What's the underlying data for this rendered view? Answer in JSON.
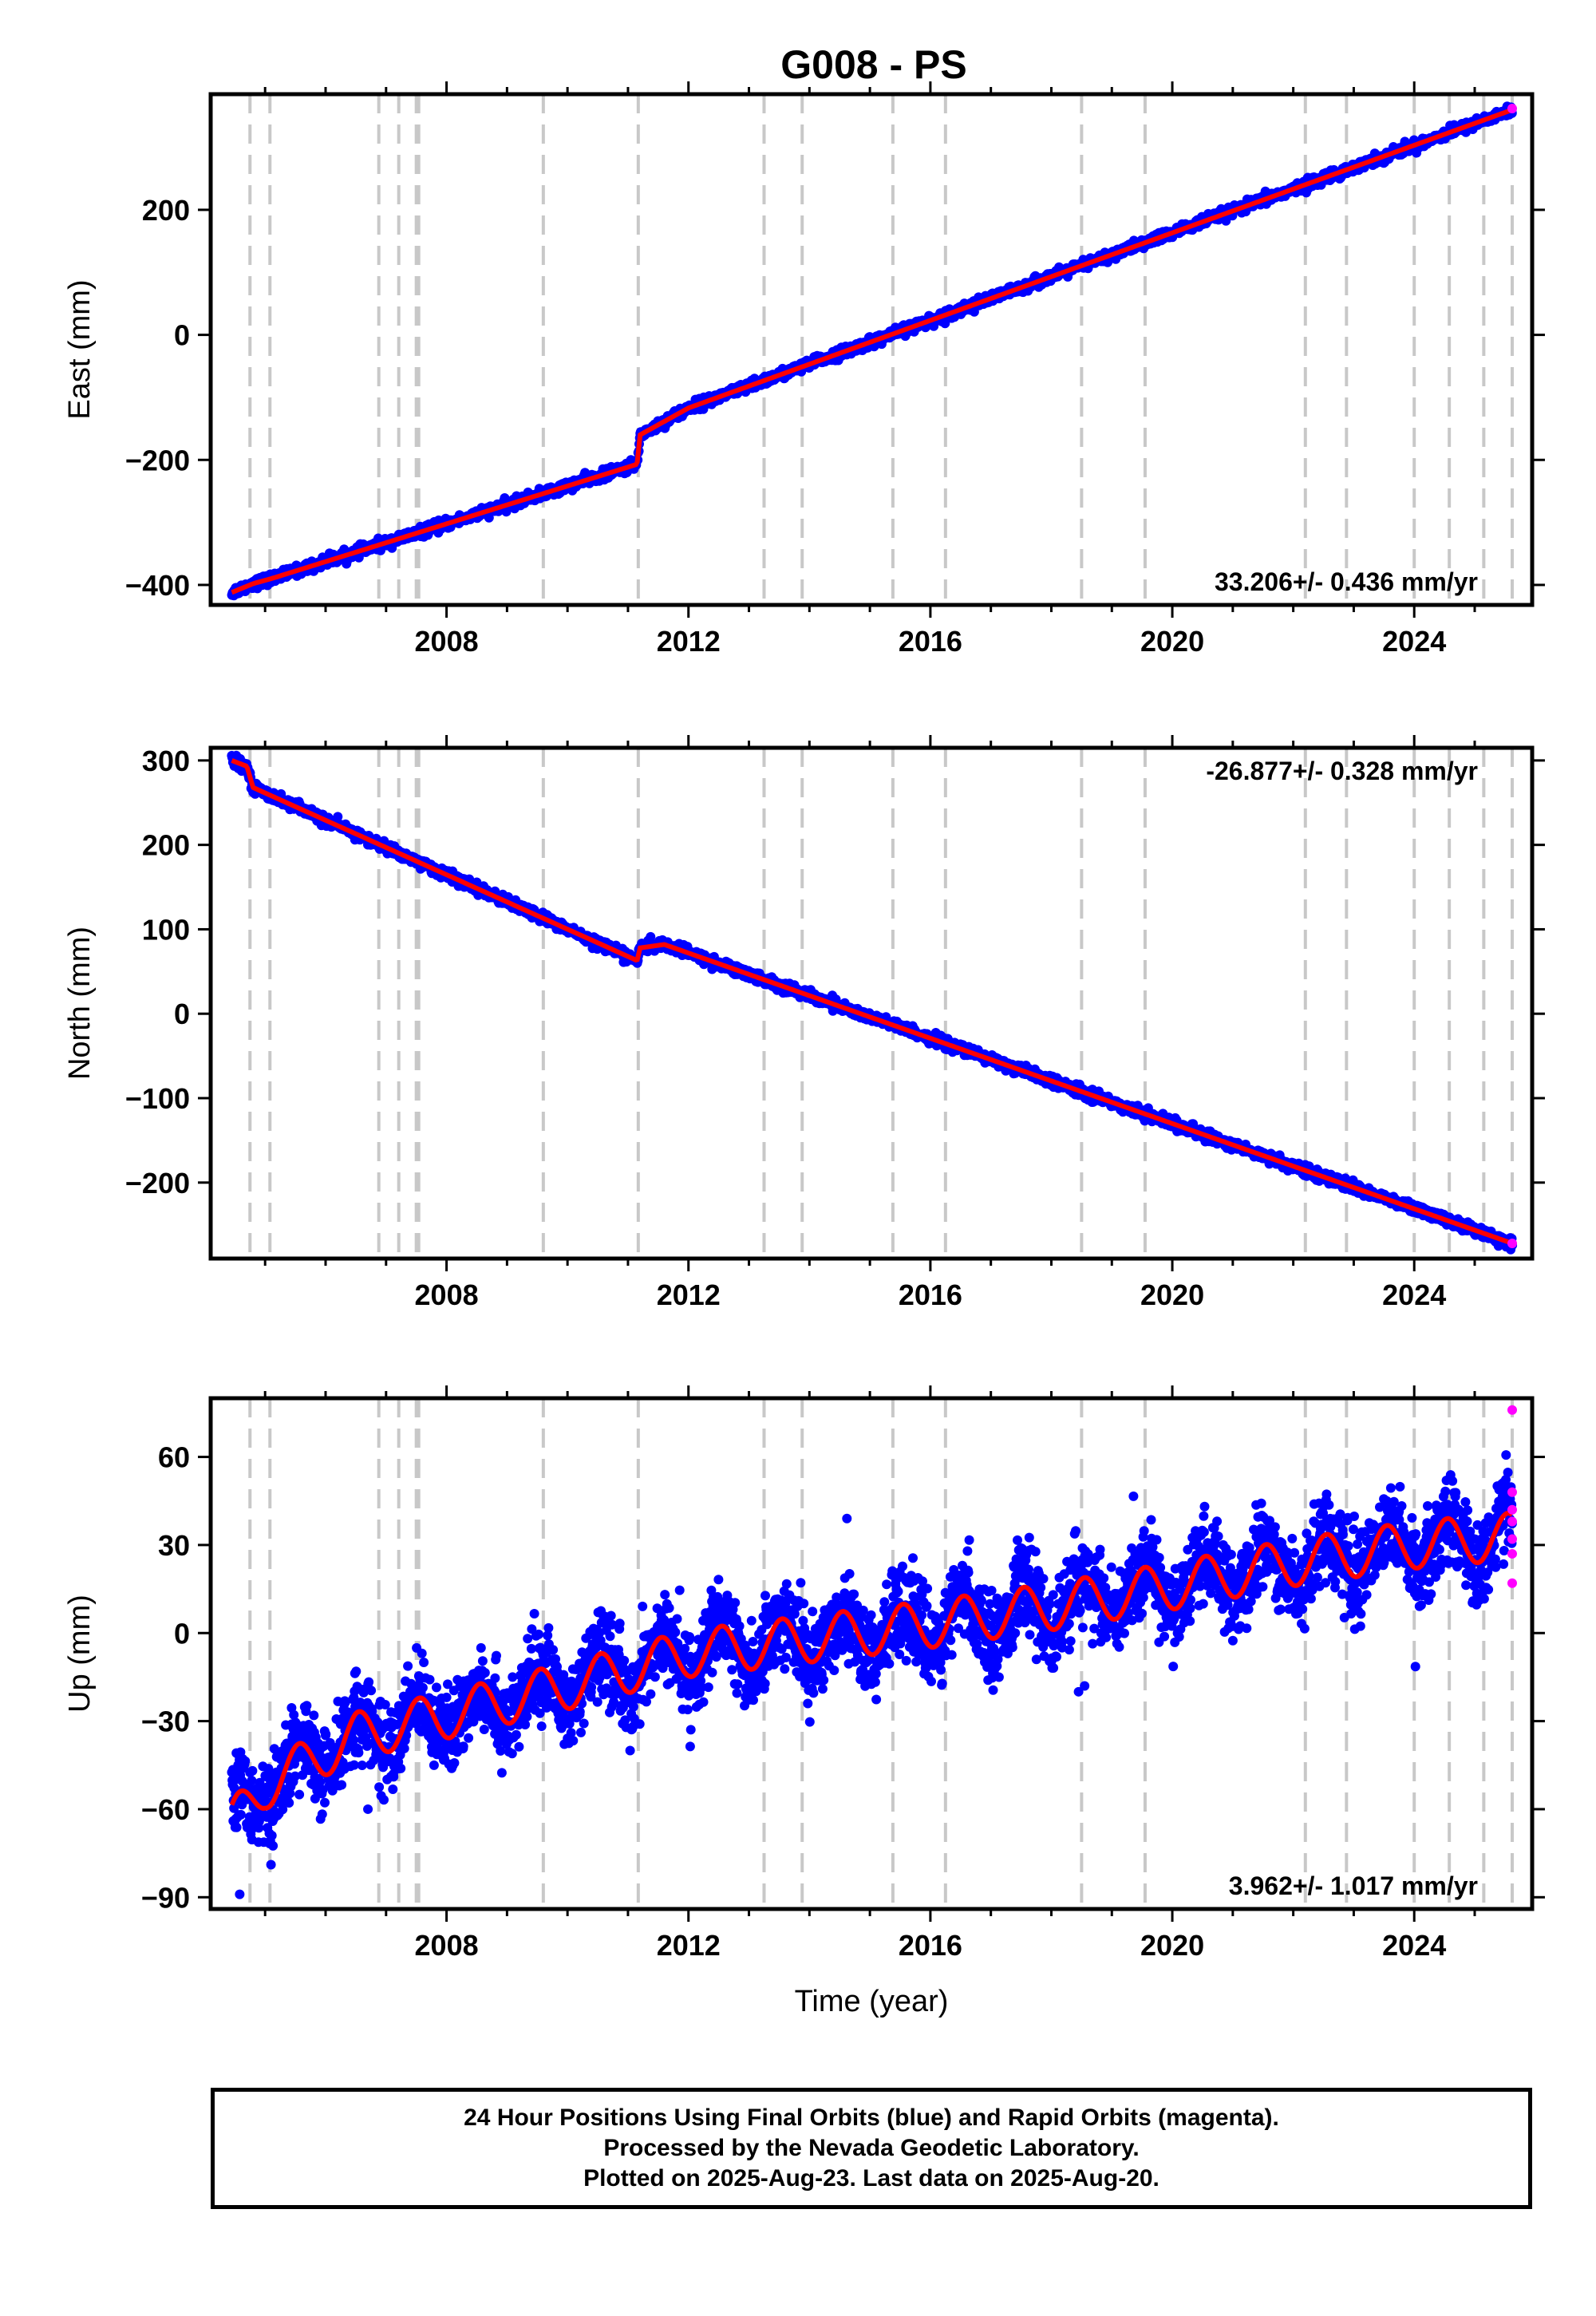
{
  "title": "G008 - PS",
  "colors": {
    "final_points": "#0000ff",
    "rapid_points": "#ff00ff",
    "fit_line": "#ff0000",
    "event_lines": "#c8c8c8",
    "axes": "#000000"
  },
  "event_years": [
    2004.75,
    2005.08,
    2006.88,
    2007.21,
    2007.5,
    2007.54,
    2009.6,
    2011.17,
    2013.25,
    2013.88,
    2015.38,
    2016.25,
    2018.5,
    2019.55,
    2022.2,
    2022.88,
    2024.0,
    2024.58,
    2025.15,
    2025.62
  ],
  "footer": {
    "lines": [
      "24 Hour Positions Using Final Orbits (blue) and Rapid Orbits (magenta).",
      "Processed by the Nevada Geodetic Laboratory.",
      "Plotted on 2025-Aug-23. Last data on 2025-Aug-20."
    ]
  },
  "chart_data": [
    {
      "type": "scatter",
      "component": "east",
      "ylabel": "East (mm)",
      "xlabel": "",
      "xlim": [
        2004.1,
        2025.95
      ],
      "ylim": [
        -432,
        385
      ],
      "xticks": [
        2008,
        2012,
        2016,
        2020,
        2024
      ],
      "xtick_labels": [
        "2008",
        "2012",
        "2016",
        "2020",
        "2024"
      ],
      "yticks": [
        -400,
        -200,
        0,
        200
      ],
      "ytick_labels": [
        "−400",
        "−200",
        "0",
        "200"
      ],
      "rate_text": "33.206+/- 0.436 mm/yr",
      "rate_position": "bottom-right",
      "rate_mm_per_yr": 33.206,
      "trend_knots": [
        {
          "x": 2004.45,
          "y": -412
        },
        {
          "x": 2004.8,
          "y": -398
        },
        {
          "x": 2005.1,
          "y": -390
        },
        {
          "x": 2011.15,
          "y": -207
        },
        {
          "x": 2011.2,
          "y": -160
        },
        {
          "x": 2012.0,
          "y": -117
        },
        {
          "x": 2025.62,
          "y": 360
        }
      ],
      "noise_mm": 4,
      "rapid": [
        {
          "x": 2025.62,
          "y": 362
        }
      ],
      "grid": false
    },
    {
      "type": "scatter",
      "component": "north",
      "ylabel": "North (mm)",
      "xlabel": "",
      "xlim": [
        2004.1,
        2025.95
      ],
      "ylim": [
        -290,
        315
      ],
      "xticks": [
        2008,
        2012,
        2016,
        2020,
        2024
      ],
      "xtick_labels": [
        "2008",
        "2012",
        "2016",
        "2020",
        "2024"
      ],
      "yticks": [
        -200,
        -100,
        0,
        100,
        200,
        300
      ],
      "ytick_labels": [
        "−200",
        "−100",
        "0",
        "100",
        "200",
        "300"
      ],
      "rate_text": "-26.877+/- 0.328 mm/yr",
      "rate_position": "top-right",
      "rate_mm_per_yr": -26.877,
      "trend_knots": [
        {
          "x": 2004.45,
          "y": 300
        },
        {
          "x": 2004.7,
          "y": 293
        },
        {
          "x": 2004.8,
          "y": 268
        },
        {
          "x": 2005.2,
          "y": 255
        },
        {
          "x": 2011.15,
          "y": 63
        },
        {
          "x": 2011.2,
          "y": 78
        },
        {
          "x": 2011.6,
          "y": 82
        },
        {
          "x": 2025.62,
          "y": -272
        }
      ],
      "noise_mm": 3,
      "rapid": [
        {
          "x": 2025.62,
          "y": -272
        }
      ],
      "grid": false
    },
    {
      "type": "scatter",
      "component": "up",
      "ylabel": "Up (mm)",
      "xlabel": "Time (year)",
      "xlim": [
        2004.1,
        2025.95
      ],
      "ylim": [
        -94,
        80
      ],
      "xticks": [
        2008,
        2012,
        2016,
        2020,
        2024
      ],
      "xtick_labels": [
        "2008",
        "2012",
        "2016",
        "2020",
        "2024"
      ],
      "yticks": [
        -90,
        -60,
        -30,
        0,
        30,
        60
      ],
      "ytick_labels": [
        "−90",
        "−60",
        "−30",
        "0",
        "30",
        "60"
      ],
      "rate_text": "3.962+/- 1.017 mm/yr",
      "rate_position": "bottom-right",
      "rate_mm_per_yr": 3.962,
      "trend_knots": [
        {
          "x": 2004.45,
          "y": -65
        },
        {
          "x": 2005.0,
          "y": -52
        },
        {
          "x": 2006.5,
          "y": -35
        },
        {
          "x": 2008.0,
          "y": -28
        },
        {
          "x": 2010.0,
          "y": -18
        },
        {
          "x": 2012.0,
          "y": -7
        },
        {
          "x": 2014.0,
          "y": -2
        },
        {
          "x": 2016.0,
          "y": 3
        },
        {
          "x": 2018.0,
          "y": 9
        },
        {
          "x": 2020.0,
          "y": 16
        },
        {
          "x": 2022.0,
          "y": 24
        },
        {
          "x": 2024.0,
          "y": 30
        },
        {
          "x": 2025.62,
          "y": 33
        }
      ],
      "seasonal_amplitude_mm": 8,
      "noise_mm": 7,
      "rapid": [
        {
          "x": 2025.62,
          "y": 76
        },
        {
          "x": 2025.62,
          "y": 48
        },
        {
          "x": 2025.62,
          "y": 42
        },
        {
          "x": 2025.62,
          "y": 38
        },
        {
          "x": 2025.62,
          "y": 32
        },
        {
          "x": 2025.62,
          "y": 27
        },
        {
          "x": 2025.62,
          "y": 17
        }
      ],
      "grid": false
    }
  ]
}
